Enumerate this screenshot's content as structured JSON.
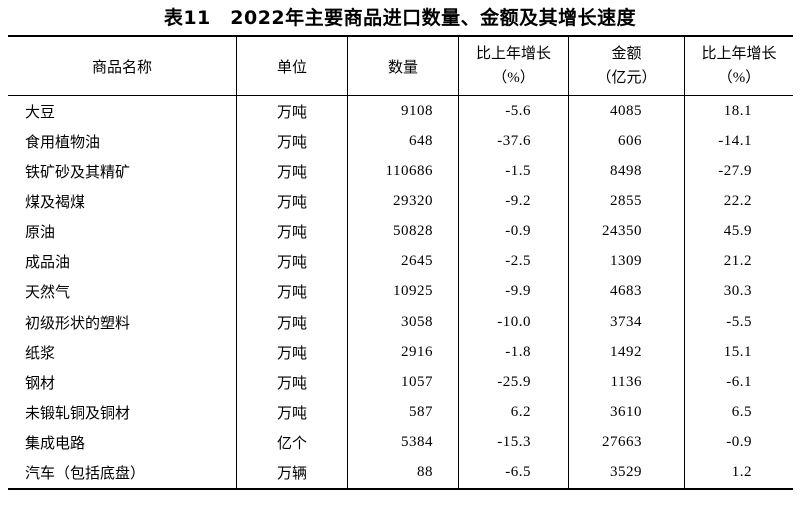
{
  "title": "表11　2022年主要商品进口数量、金额及其增长速度",
  "table": {
    "headers": {
      "commodity": "商品名称",
      "unit": "单位",
      "quantity": "数量",
      "quantity_growth_l1": "比上年增长",
      "quantity_growth_l2": "（%）",
      "amount_l1": "金额",
      "amount_l2": "（亿元）",
      "amount_growth_l1": "比上年增长",
      "amount_growth_l2": "（%）"
    },
    "rows": [
      {
        "name": "大豆",
        "unit": "万吨",
        "quantity": "9108",
        "quantity_growth": "-5.6",
        "amount": "4085",
        "amount_growth": "18.1"
      },
      {
        "name": "食用植物油",
        "unit": "万吨",
        "quantity": "648",
        "quantity_growth": "-37.6",
        "amount": "606",
        "amount_growth": "-14.1"
      },
      {
        "name": "铁矿砂及其精矿",
        "unit": "万吨",
        "quantity": "110686",
        "quantity_growth": "-1.5",
        "amount": "8498",
        "amount_growth": "-27.9"
      },
      {
        "name": "煤及褐煤",
        "unit": "万吨",
        "quantity": "29320",
        "quantity_growth": "-9.2",
        "amount": "2855",
        "amount_growth": "22.2"
      },
      {
        "name": "原油",
        "unit": "万吨",
        "quantity": "50828",
        "quantity_growth": "-0.9",
        "amount": "24350",
        "amount_growth": "45.9"
      },
      {
        "name": "成品油",
        "unit": "万吨",
        "quantity": "2645",
        "quantity_growth": "-2.5",
        "amount": "1309",
        "amount_growth": "21.2"
      },
      {
        "name": "天然气",
        "unit": "万吨",
        "quantity": "10925",
        "quantity_growth": "-9.9",
        "amount": "4683",
        "amount_growth": "30.3"
      },
      {
        "name": "初级形状的塑料",
        "unit": "万吨",
        "quantity": "3058",
        "quantity_growth": "-10.0",
        "amount": "3734",
        "amount_growth": "-5.5"
      },
      {
        "name": "纸浆",
        "unit": "万吨",
        "quantity": "2916",
        "quantity_growth": "-1.8",
        "amount": "1492",
        "amount_growth": "15.1"
      },
      {
        "name": "钢材",
        "unit": "万吨",
        "quantity": "1057",
        "quantity_growth": "-25.9",
        "amount": "1136",
        "amount_growth": "-6.1"
      },
      {
        "name": "未锻轧铜及铜材",
        "unit": "万吨",
        "quantity": "587",
        "quantity_growth": "6.2",
        "amount": "3610",
        "amount_growth": "6.5"
      },
      {
        "name": "集成电路",
        "unit": "亿个",
        "quantity": "5384",
        "quantity_growth": "-15.3",
        "amount": "27663",
        "amount_growth": "-0.9"
      },
      {
        "name": "汽车（包括底盘）",
        "unit": "万辆",
        "quantity": "88",
        "quantity_growth": "-6.5",
        "amount": "3529",
        "amount_growth": "1.2"
      }
    ]
  }
}
